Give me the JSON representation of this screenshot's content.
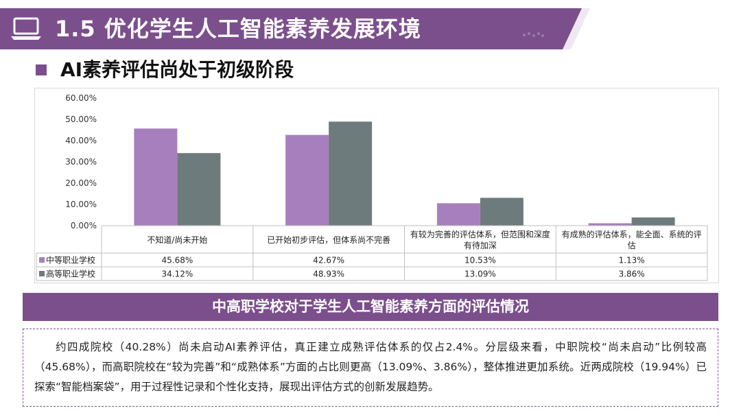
{
  "header": {
    "title": "1.5 优化学生人工智能素养发展环境",
    "accent_color": "#7b4f8c",
    "icon": "laptop-icon"
  },
  "subtitle": "AI素养评估尚处于初级阶段",
  "chart_data": {
    "type": "bar",
    "title": "",
    "xlabel": "",
    "ylabel": "",
    "ylim": [
      0,
      60
    ],
    "y_tick_labels": [
      "0.00%",
      "10.00%",
      "20.00%",
      "30.00%",
      "40.00%",
      "50.00%",
      "60.00%"
    ],
    "grid": false,
    "legend_placement": "data-table-left",
    "categories": [
      "不知道/尚未开始",
      "已开始初步评估，但体系尚不完善",
      "有较为完善的评估体系，但范围和深度有待加深",
      "有成熟的评估体系，能全面、系统的评估"
    ],
    "series": [
      {
        "name": "中等职业学校",
        "color": "#a77fbd",
        "values": [
          45.68,
          42.67,
          10.53,
          1.13
        ],
        "labels": [
          "45.68%",
          "42.67%",
          "10.53%",
          "1.13%"
        ]
      },
      {
        "name": "高等职业学校",
        "color": "#6e7b7d",
        "values": [
          34.12,
          48.93,
          13.09,
          3.86
        ],
        "labels": [
          "34.12%",
          "48.93%",
          "13.09%",
          "3.86%"
        ]
      }
    ]
  },
  "caption": "中高职学校对于学生人工智能素养方面的评估情况",
  "description": "约四成院校（40.28%）尚未启动AI素养评估，真正建立成熟评估体系的仅占2.4%。分层级来看，中职院校“尚未启动”比例较高（45.68%），而高职院校在“较为完善”和“成熟体系”方面的占比则更高（13.09%、3.86%），整体推进更加系统。近两成院校（19.94%）已探索“智能档案袋”，用于过程性记录和个性化支持，展现出评估方式的创新发展趋势。"
}
